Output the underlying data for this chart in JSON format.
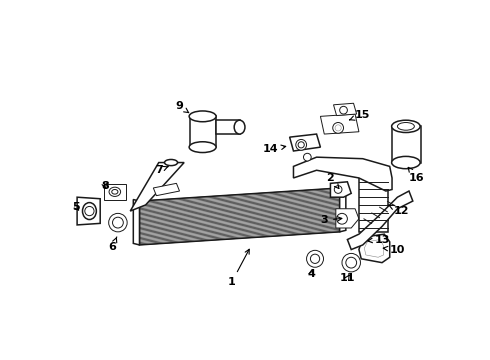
{
  "bg_color": "#ffffff",
  "line_color": "#1a1a1a",
  "lw_main": 1.1,
  "lw_thin": 0.7,
  "label_fontsize": 8.0
}
